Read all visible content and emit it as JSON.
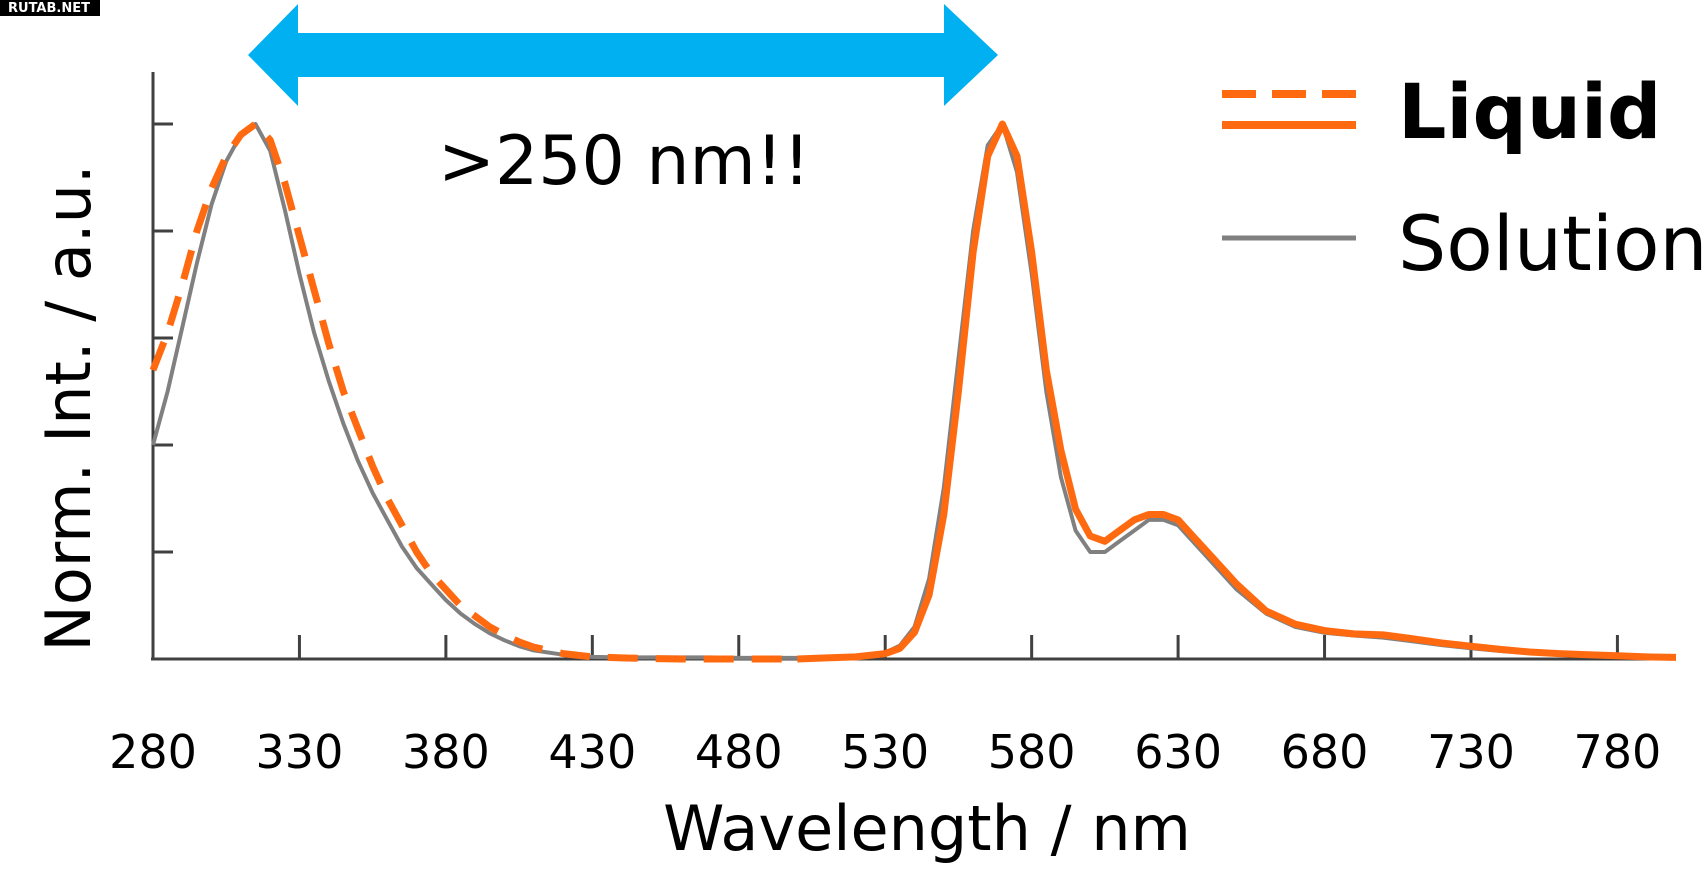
{
  "watermark": "RUTAB.NET",
  "chart_data": {
    "type": "line",
    "xlabel": "Wavelength / nm",
    "ylabel": "Norm. Int. / a.u.",
    "xlim": [
      280,
      800
    ],
    "ylim": [
      0,
      1.0
    ],
    "x_ticks": [
      280,
      330,
      380,
      430,
      480,
      530,
      580,
      630,
      680,
      730,
      780
    ],
    "grid": false,
    "legend": {
      "placement": "top-right",
      "entries": [
        {
          "label": "Liquid",
          "color": "#ff6a10",
          "style": "dashed + solid",
          "bold": true
        },
        {
          "label": "Solution",
          "color": "#808080",
          "style": "solid",
          "bold": false
        }
      ]
    },
    "annotation": {
      "text": ">250 nm!!",
      "arrow_from_x": 312,
      "arrow_to_x": 567,
      "arrow_color": "#00b0f0"
    },
    "series": [
      {
        "name": "Liquid",
        "part": "absorption",
        "color": "#ff6a10",
        "dash": true,
        "x": [
          280,
          285,
          290,
          295,
          300,
          305,
          310,
          315,
          320,
          325,
          330,
          335,
          340,
          345,
          350,
          355,
          360,
          365,
          370,
          375,
          380,
          385,
          390,
          395,
          400,
          405,
          410,
          420,
          430,
          440,
          450,
          460,
          470,
          480,
          490,
          500
        ],
        "values": [
          0.54,
          0.61,
          0.7,
          0.8,
          0.88,
          0.94,
          0.98,
          1.0,
          0.97,
          0.89,
          0.79,
          0.69,
          0.59,
          0.5,
          0.43,
          0.36,
          0.3,
          0.25,
          0.2,
          0.16,
          0.13,
          0.1,
          0.08,
          0.06,
          0.045,
          0.032,
          0.022,
          0.01,
          0.004,
          0.002,
          0.001,
          0.0,
          0.0,
          0.0,
          0.0,
          0.0
        ]
      },
      {
        "name": "Liquid",
        "part": "emission",
        "color": "#ff6a10",
        "dash": false,
        "x": [
          500,
          510,
          520,
          530,
          535,
          540,
          545,
          550,
          555,
          560,
          565,
          570,
          575,
          580,
          585,
          590,
          595,
          600,
          605,
          610,
          615,
          620,
          625,
          630,
          635,
          640,
          645,
          650,
          660,
          670,
          680,
          690,
          700,
          710,
          720,
          730,
          740,
          750,
          760,
          770,
          780,
          790,
          800
        ],
        "values": [
          0.0,
          0.002,
          0.004,
          0.01,
          0.02,
          0.05,
          0.12,
          0.27,
          0.5,
          0.76,
          0.94,
          1.0,
          0.94,
          0.76,
          0.54,
          0.39,
          0.28,
          0.23,
          0.22,
          0.24,
          0.26,
          0.27,
          0.27,
          0.26,
          0.23,
          0.2,
          0.17,
          0.14,
          0.09,
          0.065,
          0.053,
          0.047,
          0.045,
          0.038,
          0.03,
          0.024,
          0.018,
          0.013,
          0.01,
          0.008,
          0.006,
          0.004,
          0.003
        ]
      },
      {
        "name": "Solution",
        "color": "#808080",
        "dash": false,
        "x": [
          280,
          285,
          290,
          295,
          300,
          305,
          310,
          315,
          320,
          325,
          330,
          335,
          340,
          345,
          350,
          355,
          360,
          365,
          370,
          375,
          380,
          385,
          390,
          395,
          400,
          405,
          410,
          420,
          430,
          440,
          450,
          460,
          470,
          480,
          490,
          500,
          510,
          520,
          530,
          535,
          540,
          545,
          550,
          555,
          560,
          565,
          570,
          575,
          580,
          585,
          590,
          595,
          600,
          605,
          610,
          615,
          620,
          625,
          630,
          635,
          640,
          645,
          650,
          660,
          670,
          680,
          690,
          700,
          710,
          720,
          730,
          740,
          750,
          760,
          770,
          780,
          790,
          800
        ],
        "values": [
          0.4,
          0.5,
          0.62,
          0.74,
          0.85,
          0.93,
          0.98,
          1.0,
          0.95,
          0.84,
          0.72,
          0.61,
          0.52,
          0.44,
          0.37,
          0.31,
          0.26,
          0.21,
          0.17,
          0.14,
          0.11,
          0.085,
          0.065,
          0.048,
          0.035,
          0.024,
          0.016,
          0.008,
          0.004,
          0.003,
          0.003,
          0.003,
          0.003,
          0.002,
          0.002,
          0.002,
          0.003,
          0.005,
          0.012,
          0.025,
          0.06,
          0.15,
          0.32,
          0.56,
          0.8,
          0.96,
          1.0,
          0.91,
          0.72,
          0.5,
          0.34,
          0.24,
          0.2,
          0.2,
          0.22,
          0.24,
          0.26,
          0.26,
          0.25,
          0.22,
          0.19,
          0.16,
          0.13,
          0.085,
          0.06,
          0.049,
          0.044,
          0.04,
          0.033,
          0.026,
          0.02,
          0.015,
          0.011,
          0.008,
          0.006,
          0.005,
          0.004,
          0.003
        ]
      }
    ]
  }
}
